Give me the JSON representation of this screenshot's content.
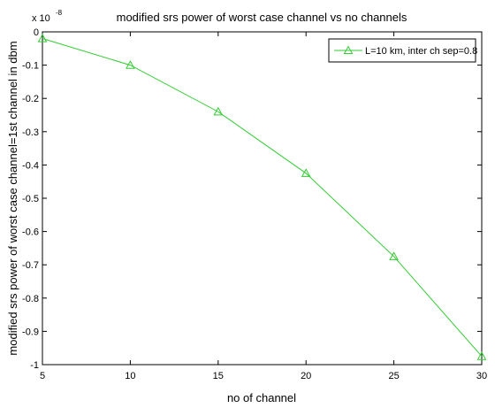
{
  "chart_data": {
    "type": "line",
    "title": "modified srs power of worst case channel vs no channels",
    "xlabel": "no of channel",
    "ylabel": "modified srs power of worst case channel=1st channel in dbm",
    "y_exponent_base": "x 10",
    "y_exponent_power": "-8",
    "xlim": [
      5,
      30
    ],
    "ylim": [
      -1,
      0
    ],
    "xticks": [
      5,
      10,
      15,
      20,
      25,
      30
    ],
    "yticks": [
      0,
      -0.1,
      -0.2,
      -0.3,
      -0.4,
      -0.5,
      -0.6,
      -0.7,
      -0.8,
      -0.9,
      -1
    ],
    "ytick_labels": [
      "0",
      "-0.1",
      "-0.2",
      "-0.3",
      "-0.4",
      "-0.5",
      "-0.6",
      "-0.7",
      "-0.8",
      "-0.9",
      "-1"
    ],
    "grid": false,
    "legend_position": "top-right",
    "series": [
      {
        "name": "L=10 km, inter ch sep=0.8",
        "color": "#33cc33",
        "marker": "triangle",
        "x": [
          5,
          10,
          15,
          20,
          25,
          30
        ],
        "y": [
          -0.02,
          -0.1,
          -0.24,
          -0.425,
          -0.675,
          -0.975
        ]
      }
    ]
  }
}
